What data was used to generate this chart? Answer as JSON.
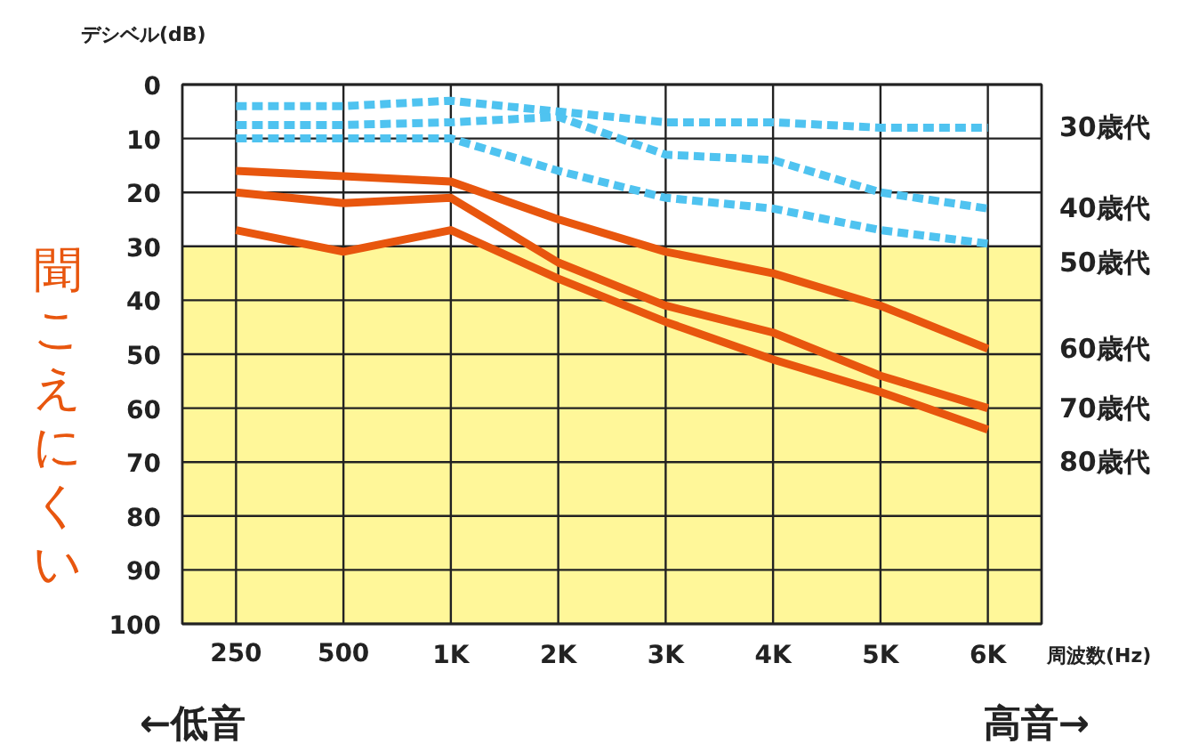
{
  "chart_data": {
    "type": "line",
    "ylabel": "デシベル(dB)",
    "xlabel": "周波数(Hz)",
    "categories": [
      "250",
      "500",
      "1K",
      "2K",
      "3K",
      "4K",
      "5K",
      "6K"
    ],
    "ylim": [
      100,
      0
    ],
    "yticks": [
      0,
      10,
      20,
      30,
      40,
      50,
      60,
      70,
      80,
      90,
      100
    ],
    "grid": true,
    "legend": false,
    "marker": "none",
    "bands": [
      {
        "axis": "y",
        "from": 30,
        "to": 100,
        "color": "#fff799"
      }
    ],
    "series": [
      {
        "name": "30歳代",
        "color": "#4fc3f0",
        "line_style": "dashed",
        "values": [
          4,
          4,
          3,
          5,
          7,
          7,
          8,
          8
        ]
      },
      {
        "name": "40歳代",
        "color": "#4fc3f0",
        "line_style": "dashed",
        "values": [
          7.5,
          7.5,
          7,
          6,
          13,
          14,
          20,
          23
        ]
      },
      {
        "name": "50歳代",
        "color": "#4fc3f0",
        "line_style": "dashed",
        "values": [
          10,
          10,
          10,
          16,
          21,
          23,
          27,
          29.5
        ]
      },
      {
        "name": "60歳代",
        "color": "#e8560e",
        "line_style": "solid",
        "values": [
          16,
          17,
          18,
          25,
          31,
          35,
          41,
          49
        ]
      },
      {
        "name": "70歳代",
        "color": "#e8560e",
        "line_style": "solid",
        "values": [
          20,
          22,
          21,
          33,
          41,
          46,
          54,
          60
        ]
      },
      {
        "name": "80歳代",
        "color": "#e8560e",
        "line_style": "solid",
        "values": [
          27,
          31,
          27,
          36,
          44,
          51,
          57,
          64
        ]
      }
    ],
    "annotations": [
      "聞こえにくい",
      "←低音",
      "高音→"
    ]
  }
}
